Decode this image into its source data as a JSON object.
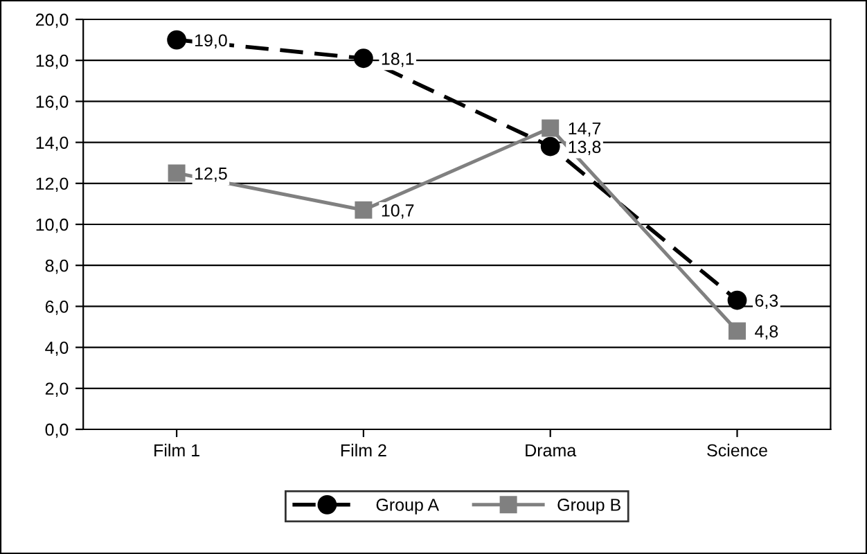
{
  "chart_data": {
    "type": "line",
    "categories": [
      "Film 1",
      "Film 2",
      "Drama",
      "Science"
    ],
    "series": [
      {
        "name": "Group A",
        "color": "#000000",
        "values": [
          19.0,
          18.1,
          13.8,
          6.3
        ],
        "value_labels": [
          "19,0",
          "18,1",
          "13,8",
          "6,3"
        ],
        "marker": "circle",
        "line_style": "dashed"
      },
      {
        "name": "Group B",
        "color": "#808080",
        "values": [
          12.5,
          10.7,
          14.7,
          4.8
        ],
        "value_labels": [
          "12,5",
          "10,7",
          "14,7",
          "4,8"
        ],
        "marker": "square",
        "line_style": "solid"
      }
    ],
    "ylim": [
      0,
      20
    ],
    "yticks": [
      {
        "value": 0,
        "label": "0,0"
      },
      {
        "value": 2,
        "label": "2,0"
      },
      {
        "value": 4,
        "label": "4,0"
      },
      {
        "value": 6,
        "label": "6,0"
      },
      {
        "value": 8,
        "label": "8,0"
      },
      {
        "value": 10,
        "label": "10,0"
      },
      {
        "value": 12,
        "label": "12,0"
      },
      {
        "value": 14,
        "label": "14,0"
      },
      {
        "value": 16,
        "label": "16,0"
      },
      {
        "value": 18,
        "label": "18,0"
      },
      {
        "value": 20,
        "label": "20,0"
      }
    ],
    "grid": "y",
    "legend": "bottom"
  }
}
